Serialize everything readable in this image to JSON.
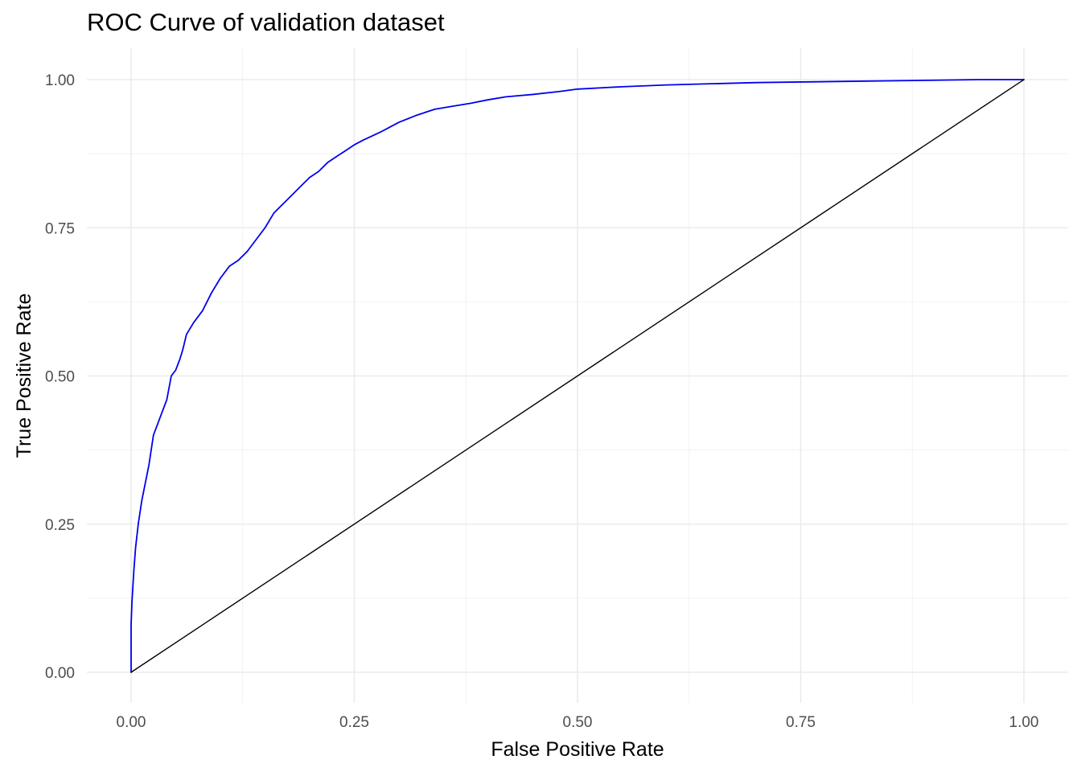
{
  "chart_data": {
    "type": "line",
    "title": "ROC Curve of validation dataset",
    "xlabel": "False Positive Rate",
    "ylabel": "True Positive Rate",
    "xlim": [
      0,
      1
    ],
    "ylim": [
      0,
      1
    ],
    "x_ticks": [
      "0.00",
      "0.25",
      "0.50",
      "0.75",
      "1.00"
    ],
    "y_ticks": [
      "0.00",
      "0.25",
      "0.50",
      "0.75",
      "1.00"
    ],
    "grid": true,
    "series": [
      {
        "color": "#0000ee",
        "points": [
          [
            0.0,
            0.0
          ],
          [
            0.0,
            0.08
          ],
          [
            0.001,
            0.12
          ],
          [
            0.003,
            0.17
          ],
          [
            0.005,
            0.21
          ],
          [
            0.008,
            0.25
          ],
          [
            0.012,
            0.29
          ],
          [
            0.016,
            0.32
          ],
          [
            0.02,
            0.35
          ],
          [
            0.025,
            0.4
          ],
          [
            0.03,
            0.42
          ],
          [
            0.035,
            0.44
          ],
          [
            0.04,
            0.46
          ],
          [
            0.045,
            0.5
          ],
          [
            0.05,
            0.51
          ],
          [
            0.055,
            0.53
          ],
          [
            0.058,
            0.545
          ],
          [
            0.062,
            0.57
          ],
          [
            0.07,
            0.59
          ],
          [
            0.08,
            0.61
          ],
          [
            0.09,
            0.64
          ],
          [
            0.1,
            0.665
          ],
          [
            0.11,
            0.685
          ],
          [
            0.12,
            0.695
          ],
          [
            0.13,
            0.71
          ],
          [
            0.14,
            0.73
          ],
          [
            0.15,
            0.75
          ],
          [
            0.16,
            0.775
          ],
          [
            0.17,
            0.79
          ],
          [
            0.18,
            0.805
          ],
          [
            0.19,
            0.82
          ],
          [
            0.2,
            0.835
          ],
          [
            0.21,
            0.845
          ],
          [
            0.22,
            0.86
          ],
          [
            0.23,
            0.87
          ],
          [
            0.24,
            0.88
          ],
          [
            0.25,
            0.89
          ],
          [
            0.26,
            0.898
          ],
          [
            0.27,
            0.905
          ],
          [
            0.28,
            0.912
          ],
          [
            0.29,
            0.92
          ],
          [
            0.3,
            0.928
          ],
          [
            0.32,
            0.94
          ],
          [
            0.34,
            0.95
          ],
          [
            0.36,
            0.955
          ],
          [
            0.38,
            0.96
          ],
          [
            0.4,
            0.966
          ],
          [
            0.42,
            0.971
          ],
          [
            0.45,
            0.975
          ],
          [
            0.48,
            0.98
          ],
          [
            0.5,
            0.984
          ],
          [
            0.55,
            0.988
          ],
          [
            0.6,
            0.991
          ],
          [
            0.65,
            0.993
          ],
          [
            0.7,
            0.995
          ],
          [
            0.75,
            0.996
          ],
          [
            0.8,
            0.997
          ],
          [
            0.85,
            0.998
          ],
          [
            0.9,
            0.999
          ],
          [
            0.95,
            1.0
          ],
          [
            1.0,
            1.0
          ]
        ]
      },
      {
        "color": "#000000",
        "points": [
          [
            0,
            0
          ],
          [
            1,
            1
          ]
        ]
      }
    ]
  }
}
